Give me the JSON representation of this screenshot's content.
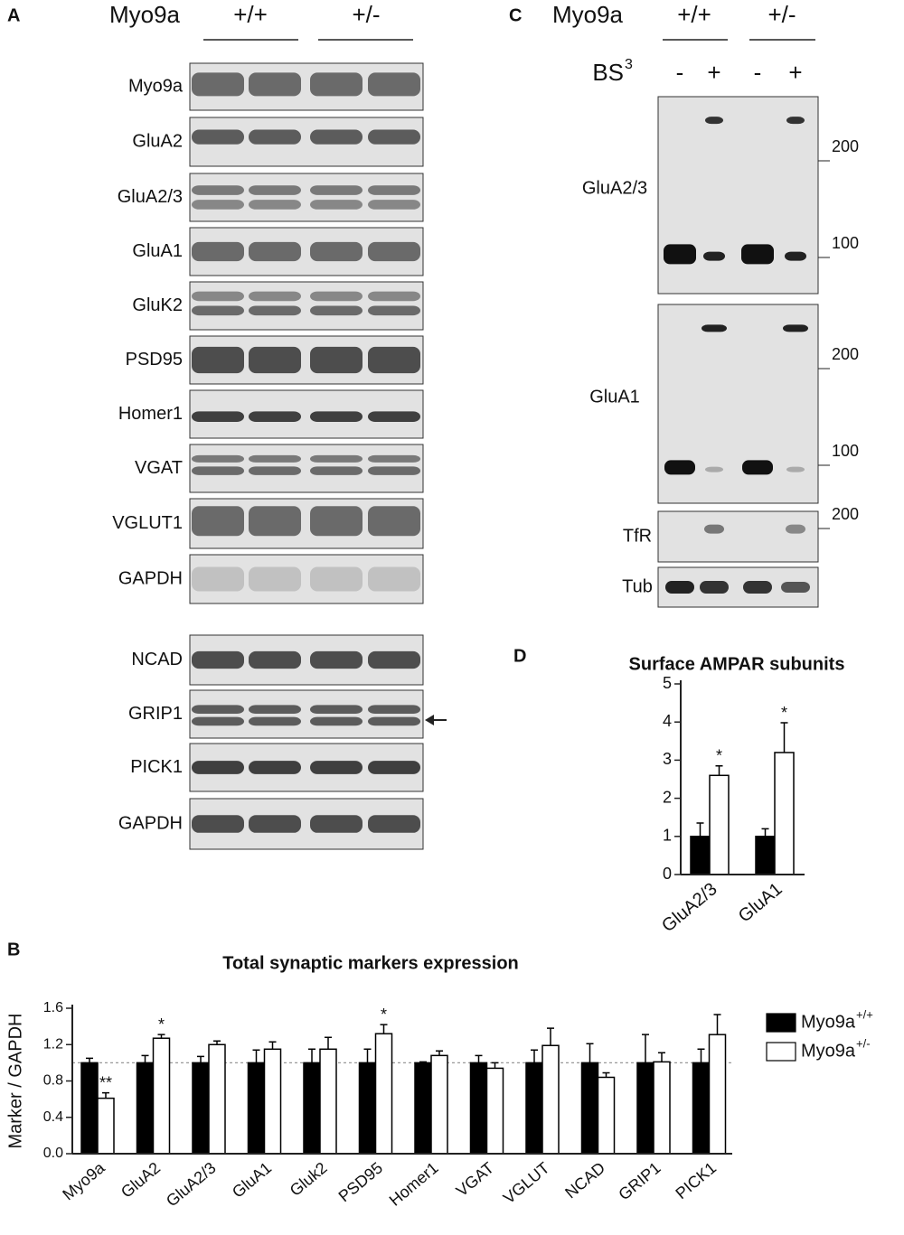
{
  "panel_a": {
    "label": "A",
    "header": {
      "gene": "Myo9a",
      "groups": [
        "+/+",
        "+/-"
      ]
    },
    "blots": [
      "Myo9a",
      "GluA2",
      "GluA2/3",
      "GluA1",
      "GluK2",
      "PSD95",
      "Homer1",
      "VGAT",
      "VGLUT1",
      "GAPDH",
      "NCAD",
      "GRIP1",
      "PICK1",
      "GAPDH"
    ]
  },
  "panel_c": {
    "label": "C",
    "header": {
      "gene": "Myo9a",
      "groups": [
        "+/+",
        "+/-"
      ]
    },
    "treatment": {
      "name": "BS",
      "superscript": "3",
      "lanes": [
        "-",
        "+",
        "-",
        "+"
      ]
    },
    "blots": [
      {
        "label": "GluA2/3",
        "markers": [
          200,
          100
        ]
      },
      {
        "label": "GluA1",
        "markers": [
          200,
          100
        ]
      },
      {
        "label": "TfR",
        "markers": [
          200
        ]
      },
      {
        "label": "Tub",
        "markers": []
      }
    ]
  },
  "chart_data": [
    {
      "type": "bar",
      "panel": "B",
      "title": "Total synaptic markers expression",
      "y_label": "Marker / GAPDH",
      "categories": [
        "Myo9a",
        "GluA2",
        "GluA2/3",
        "GluA1",
        "Gluk2",
        "PSD95",
        "Homer1",
        "VGAT",
        "VGLUT",
        "NCAD",
        "GRIP1",
        "PICK1"
      ],
      "series": [
        {
          "name": "Myo9a",
          "superscript": "+/+",
          "color": "#000000",
          "values": [
            1,
            1,
            1,
            1,
            1,
            1,
            1,
            1,
            1,
            1,
            1,
            1
          ],
          "errors": [
            0.05,
            0.08,
            0.07,
            0.14,
            0.15,
            0.15,
            0.01,
            0.08,
            0.14,
            0.21,
            0.31,
            0.15
          ]
        },
        {
          "name": "Myo9a",
          "superscript": "+/-",
          "color": "#ffffff",
          "values": [
            0.61,
            1.27,
            1.2,
            1.15,
            1.15,
            1.32,
            1.08,
            0.94,
            1.19,
            0.84,
            1.01,
            1.31
          ],
          "errors": [
            0.06,
            0.04,
            0.04,
            0.08,
            0.13,
            0.1,
            0.05,
            0.06,
            0.19,
            0.05,
            0.1,
            0.22
          ],
          "significance": [
            "**",
            "*",
            null,
            null,
            null,
            "*",
            null,
            null,
            null,
            null,
            null,
            null
          ]
        }
      ],
      "ylim": [
        0,
        1.6
      ],
      "yticks": [
        {
          "value": 0,
          "label": "0.0"
        },
        0.4,
        0.8,
        1.2,
        1.6
      ],
      "reference_line": 1,
      "legend": "right"
    },
    {
      "type": "bar",
      "panel": "D",
      "title": "Surface AMPAR subunits",
      "categories": [
        "GluA2/3",
        "GluA1"
      ],
      "series": [
        {
          "color": "#000000",
          "values": [
            1,
            1
          ],
          "errors": [
            0.35,
            0.2
          ]
        },
        {
          "color": "#ffffff",
          "values": [
            2.6,
            3.2
          ],
          "errors": [
            0.25,
            0.78
          ],
          "significance": [
            "*",
            "*"
          ]
        }
      ],
      "ylim": [
        0,
        5
      ],
      "yticks": [
        0,
        1,
        2,
        3,
        4,
        5
      ]
    }
  ]
}
